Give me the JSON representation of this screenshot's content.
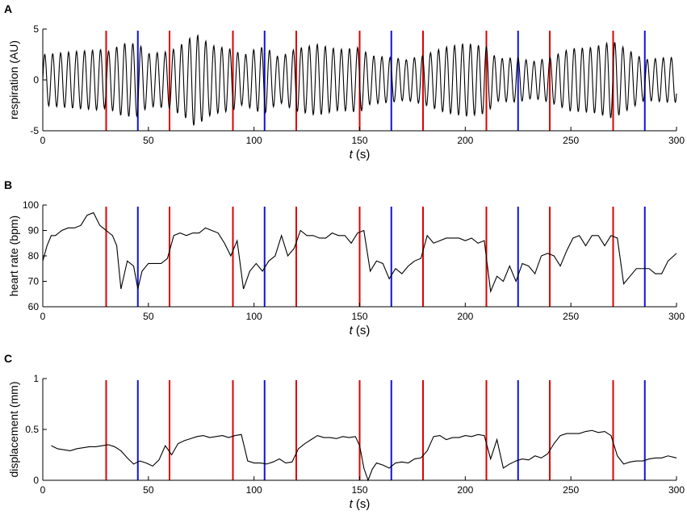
{
  "chart_data": [
    {
      "panel_label": "A",
      "type": "line",
      "xlabel_var": "t",
      "xlabel_unit": " (s)",
      "ylabel": "respiration (AU)",
      "xlim": [
        0,
        300
      ],
      "ylim": [
        -5,
        5
      ],
      "xticks": [
        0,
        50,
        100,
        150,
        200,
        250,
        300
      ],
      "yticks": [
        -5,
        0,
        5
      ],
      "red_markers": [
        30,
        60,
        90,
        120,
        150,
        180,
        210,
        240,
        270
      ],
      "blue_markers": [
        45,
        105,
        165,
        225,
        285
      ],
      "series_color": "#000000",
      "signal": {
        "kind": "oscillation",
        "period_s": 3.8,
        "envelope_x": [
          0,
          15,
          28,
          30,
          38,
          45,
          50,
          60,
          68,
          72,
          80,
          90,
          95,
          100,
          105,
          112,
          120,
          130,
          140,
          150,
          155,
          165,
          172,
          180,
          190,
          200,
          210,
          215,
          225,
          232,
          240,
          250,
          260,
          270,
          275,
          285,
          295,
          300
        ],
        "envelope_amp": [
          2.5,
          2.8,
          3.0,
          2.7,
          3.6,
          3.6,
          2.6,
          2.8,
          3.8,
          4.6,
          3.4,
          3.0,
          2.4,
          3.0,
          3.3,
          2.2,
          3.1,
          3.5,
          3.0,
          3.2,
          2.4,
          2.2,
          2.0,
          2.4,
          3.2,
          3.6,
          3.3,
          2.1,
          2.2,
          1.8,
          2.2,
          3.1,
          3.2,
          3.8,
          3.2,
          2.0,
          2.2,
          2.2
        ]
      }
    },
    {
      "panel_label": "B",
      "type": "line",
      "xlabel_var": "t",
      "xlabel_unit": " (s)",
      "ylabel": "heart rate (bpm)",
      "xlim": [
        0,
        300
      ],
      "ylim": [
        60,
        100
      ],
      "xticks": [
        0,
        50,
        100,
        150,
        200,
        250,
        300
      ],
      "yticks": [
        60,
        70,
        80,
        90,
        100
      ],
      "red_markers": [
        30,
        60,
        90,
        120,
        150,
        180,
        210,
        240,
        270
      ],
      "blue_markers": [
        45,
        105,
        165,
        225,
        285
      ],
      "series_color": "#000000",
      "x": [
        0,
        2,
        4,
        6,
        9,
        12,
        15,
        18,
        21,
        24,
        27,
        30,
        33,
        35,
        37,
        40,
        43,
        45,
        47,
        50,
        53,
        56,
        59,
        62,
        65,
        68,
        71,
        74,
        77,
        80,
        83,
        86,
        89,
        92,
        95,
        98,
        101,
        104,
        107,
        110,
        113,
        116,
        119,
        122,
        125,
        128,
        131,
        134,
        137,
        140,
        143,
        146,
        149,
        152,
        155,
        158,
        161,
        164,
        167,
        170,
        173,
        176,
        179,
        182,
        185,
        188,
        191,
        194,
        197,
        200,
        203,
        206,
        209,
        212,
        215,
        218,
        221,
        224,
        227,
        230,
        233,
        236,
        239,
        242,
        245,
        248,
        251,
        254,
        257,
        260,
        263,
        266,
        269,
        272,
        275,
        278,
        281,
        284,
        287,
        290,
        293,
        296,
        300
      ],
      "y": [
        78,
        84,
        88,
        88,
        90,
        91,
        91,
        92,
        96,
        97,
        92,
        90,
        88,
        84,
        67,
        78,
        76,
        67,
        74,
        77,
        77,
        77,
        79,
        88,
        89,
        88,
        89,
        89,
        91,
        90,
        89,
        85,
        80,
        86,
        67,
        74,
        77,
        74,
        78,
        80,
        88,
        80,
        83,
        90,
        88,
        88,
        87,
        87,
        89,
        88,
        88,
        85,
        89,
        90,
        74,
        78,
        77,
        71,
        75,
        73,
        76,
        78,
        79,
        88,
        85,
        86,
        87,
        87,
        87,
        86,
        87,
        85,
        86,
        66,
        72,
        70,
        76,
        70,
        77,
        76,
        73,
        80,
        81,
        80,
        76,
        82,
        87,
        88,
        84,
        88,
        88,
        84,
        88,
        87,
        69,
        72,
        75,
        75,
        75,
        73,
        73,
        78,
        81
      ]
    },
    {
      "panel_label": "C",
      "type": "line",
      "xlabel_var": "t",
      "xlabel_unit": " (s)",
      "ylabel": "displacement (mm)",
      "xlim": [
        0,
        300
      ],
      "ylim": [
        0,
        1
      ],
      "xticks": [
        0,
        50,
        100,
        150,
        200,
        250,
        300
      ],
      "yticks": [
        0,
        0.5,
        1
      ],
      "red_markers": [
        30,
        60,
        90,
        120,
        150,
        180,
        210,
        240,
        270
      ],
      "blue_markers": [
        45,
        105,
        165,
        225,
        285
      ],
      "series_color": "#000000",
      "x": [
        4,
        7,
        10,
        13,
        16,
        19,
        22,
        25,
        28,
        31,
        34,
        37,
        40,
        43,
        46,
        49,
        52,
        55,
        58,
        61,
        64,
        67,
        70,
        73,
        76,
        79,
        82,
        85,
        88,
        91,
        94,
        97,
        100,
        103,
        106,
        109,
        112,
        115,
        118,
        121,
        124,
        127,
        130,
        133,
        136,
        139,
        142,
        145,
        148,
        150,
        152,
        154,
        156,
        158,
        161,
        164,
        167,
        170,
        173,
        176,
        179,
        182,
        185,
        188,
        191,
        194,
        197,
        200,
        203,
        206,
        209,
        212,
        215,
        218,
        221,
        224,
        227,
        230,
        233,
        236,
        239,
        242,
        245,
        248,
        251,
        254,
        257,
        260,
        263,
        266,
        269,
        272,
        275,
        278,
        281,
        284,
        287,
        290,
        293,
        296,
        300
      ],
      "y": [
        0.34,
        0.31,
        0.3,
        0.29,
        0.31,
        0.32,
        0.33,
        0.33,
        0.34,
        0.35,
        0.33,
        0.29,
        0.22,
        0.16,
        0.19,
        0.17,
        0.14,
        0.2,
        0.34,
        0.25,
        0.36,
        0.39,
        0.41,
        0.43,
        0.44,
        0.42,
        0.43,
        0.44,
        0.42,
        0.44,
        0.45,
        0.19,
        0.17,
        0.17,
        0.16,
        0.18,
        0.21,
        0.17,
        0.18,
        0.31,
        0.36,
        0.4,
        0.44,
        0.42,
        0.42,
        0.41,
        0.43,
        0.42,
        0.43,
        0.34,
        0.12,
        0.0,
        0.11,
        0.17,
        0.15,
        0.12,
        0.17,
        0.18,
        0.17,
        0.21,
        0.22,
        0.29,
        0.43,
        0.44,
        0.4,
        0.42,
        0.42,
        0.44,
        0.43,
        0.45,
        0.44,
        0.21,
        0.4,
        0.12,
        0.16,
        0.19,
        0.21,
        0.2,
        0.24,
        0.22,
        0.26,
        0.36,
        0.44,
        0.46,
        0.46,
        0.46,
        0.48,
        0.49,
        0.47,
        0.48,
        0.44,
        0.24,
        0.16,
        0.18,
        0.19,
        0.19,
        0.21,
        0.22,
        0.22,
        0.24,
        0.22
      ]
    }
  ]
}
